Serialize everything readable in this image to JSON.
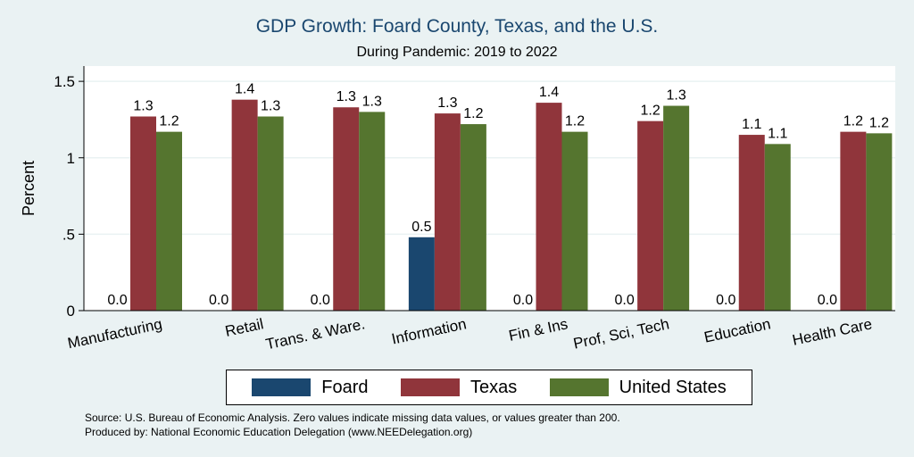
{
  "chart_data": {
    "type": "bar",
    "title": "GDP Growth: Foard County, Texas, and the U.S.",
    "subtitle": "During Pandemic: 2019 to 2022",
    "ylabel": "Percent",
    "xlabel": "",
    "ylim": [
      0,
      1.6
    ],
    "yticks": [
      {
        "value": 0,
        "label": "0"
      },
      {
        "value": 0.5,
        "label": ".5"
      },
      {
        "value": 1,
        "label": "1"
      },
      {
        "value": 1.5,
        "label": "1.5"
      }
    ],
    "categories": [
      "Manufacturing",
      "Retail",
      "Trans. & Ware.",
      "Information",
      "Fin & Ins",
      "Prof, Sci, Tech",
      "Education",
      "Health Care"
    ],
    "series": [
      {
        "name": "Foard",
        "color": "#1a476f",
        "values": [
          0,
          0,
          0,
          0.48,
          0,
          0,
          0,
          0
        ],
        "labels": [
          "0.0",
          "0.0",
          "0.0",
          "0.5",
          "0.0",
          "0.0",
          "0.0",
          "0.0"
        ]
      },
      {
        "name": "Texas",
        "color": "#90353b",
        "values": [
          1.27,
          1.38,
          1.33,
          1.29,
          1.36,
          1.24,
          1.15,
          1.17
        ],
        "labels": [
          "1.3",
          "1.4",
          "1.3",
          "1.3",
          "1.4",
          "1.2",
          "1.1",
          "1.2"
        ]
      },
      {
        "name": "United States",
        "color": "#55752f",
        "values": [
          1.17,
          1.27,
          1.3,
          1.22,
          1.17,
          1.34,
          1.09,
          1.16
        ],
        "labels": [
          "1.2",
          "1.3",
          "1.3",
          "1.2",
          "1.2",
          "1.3",
          "1.1",
          "1.2"
        ]
      }
    ],
    "legend": "bottom"
  },
  "notes": {
    "source": "Source: U.S. Bureau of Economic Analysis. Zero values indicate missing data values, or values greater than 200.",
    "produced": "Produced by: National Economic Education Delegation (www.NEEDelegation.org)"
  }
}
